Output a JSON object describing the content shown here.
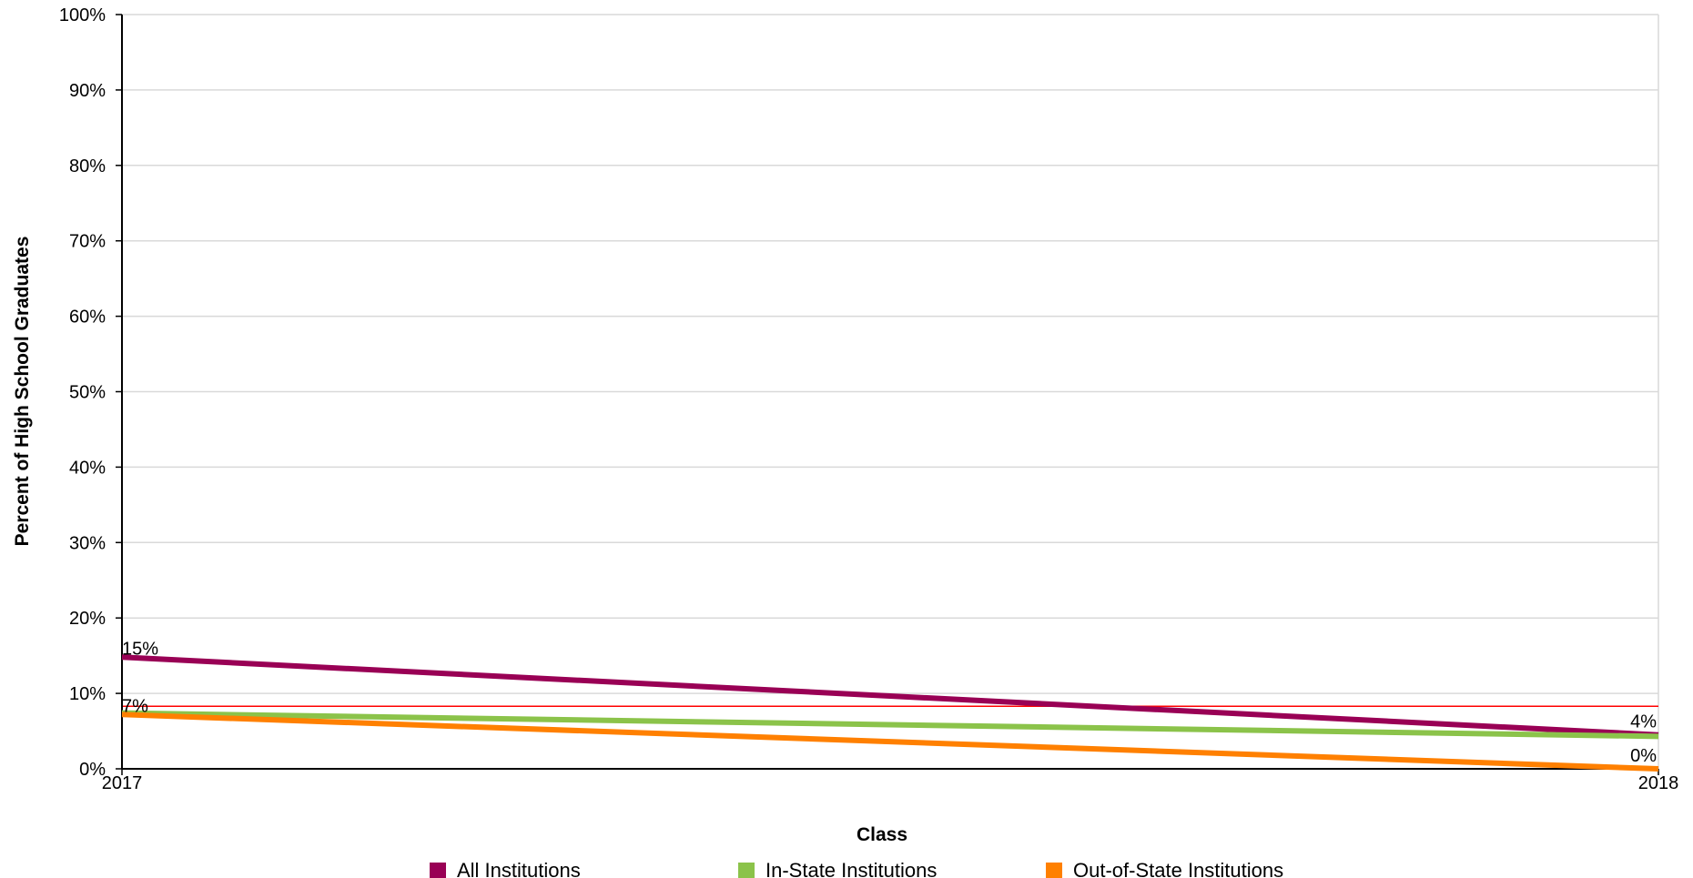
{
  "chart_data": {
    "type": "line",
    "title": "",
    "xlabel": "Class",
    "ylabel": "Percent of High School Graduates",
    "categories": [
      "2017",
      "2018"
    ],
    "ylim": [
      0,
      100
    ],
    "yticks": [
      0,
      10,
      20,
      30,
      40,
      50,
      60,
      70,
      80,
      90,
      100
    ],
    "ytick_labels": [
      "0%",
      "10%",
      "20%",
      "30%",
      "40%",
      "50%",
      "60%",
      "70%",
      "80%",
      "90%",
      "100%"
    ],
    "grid": true,
    "legend_position": "bottom",
    "reference_line": {
      "value": 8.3,
      "color": "#ff0000"
    },
    "series": [
      {
        "name": "All Institutions",
        "color": "#990055",
        "values": [
          14.8,
          4.5
        ],
        "labels": [
          "15%",
          "4%"
        ]
      },
      {
        "name": "In-State Institutions",
        "color": "#8bc34a",
        "values": [
          7.4,
          4.3
        ],
        "labels": [
          "",
          ""
        ]
      },
      {
        "name": "Out-of-State Institutions",
        "color": "#ff8000",
        "values": [
          7.2,
          0.0
        ],
        "labels": [
          "7%",
          "0%"
        ]
      }
    ]
  }
}
